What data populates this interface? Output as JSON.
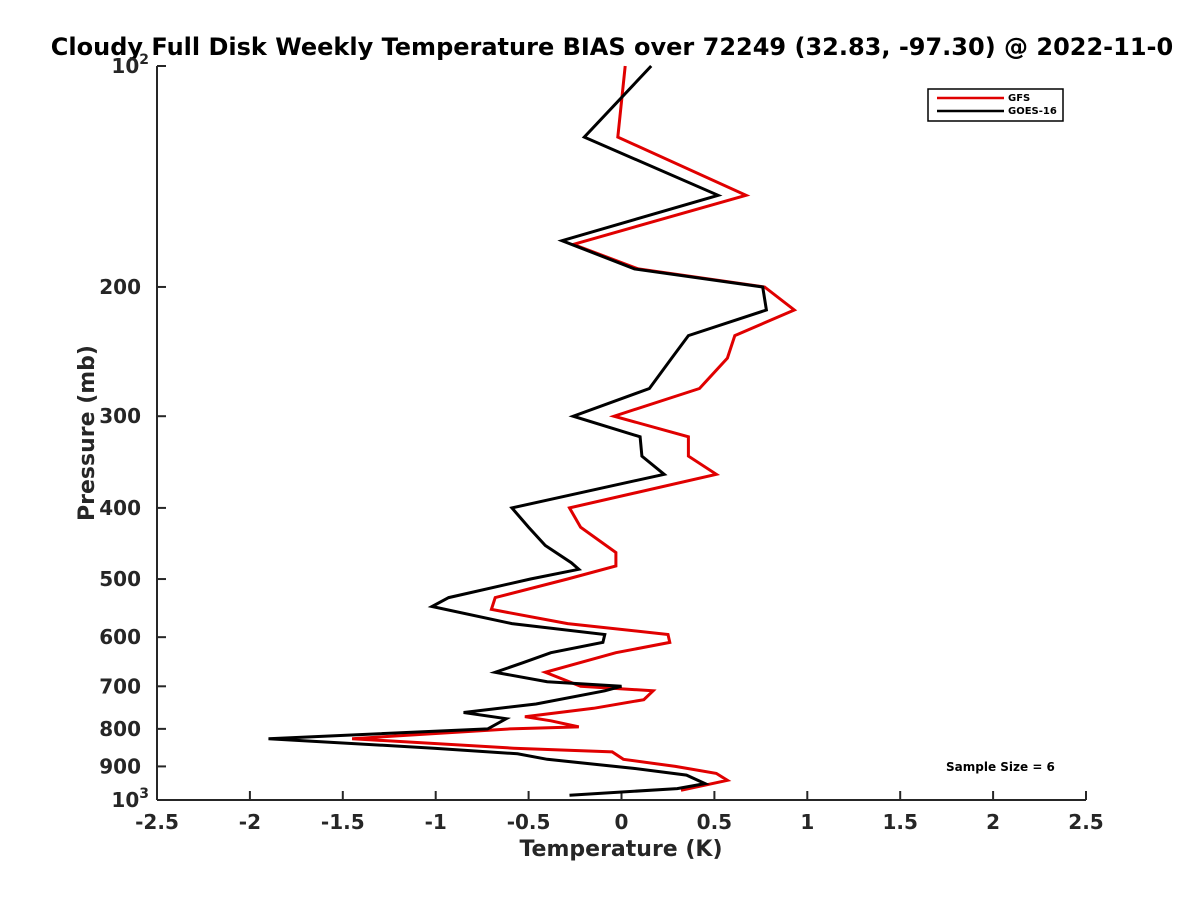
{
  "chart_data": {
    "type": "line",
    "title": "Cloudy Full Disk Weekly Temperature BIAS over 72249 (32.83, -97.30) @ 2022-11-0",
    "xlabel": "Temperature (K)",
    "ylabel": "Pressure (mb)",
    "xlim": [
      -2.5,
      2.5
    ],
    "ylim": [
      100,
      1000
    ],
    "y_scale": "log",
    "y_reversed": true,
    "grid": false,
    "x_ticks": [
      {
        "value": -2.5,
        "label": "-2.5"
      },
      {
        "value": -2,
        "label": "-2"
      },
      {
        "value": -1.5,
        "label": "-1.5"
      },
      {
        "value": -1,
        "label": "-1"
      },
      {
        "value": -0.5,
        "label": "-0.5"
      },
      {
        "value": 0,
        "label": "0"
      },
      {
        "value": 0.5,
        "label": "0.5"
      },
      {
        "value": 1,
        "label": "1"
      },
      {
        "value": 1.5,
        "label": "1.5"
      },
      {
        "value": 2,
        "label": "2"
      },
      {
        "value": 2.5,
        "label": "2.5"
      }
    ],
    "y_ticks": [
      {
        "value": 100,
        "label": "10",
        "exponent": "2"
      },
      {
        "value": 200,
        "label": "200",
        "exponent": ""
      },
      {
        "value": 300,
        "label": "300",
        "exponent": ""
      },
      {
        "value": 400,
        "label": "400",
        "exponent": ""
      },
      {
        "value": 500,
        "label": "500",
        "exponent": ""
      },
      {
        "value": 600,
        "label": "600",
        "exponent": ""
      },
      {
        "value": 700,
        "label": "700",
        "exponent": ""
      },
      {
        "value": 800,
        "label": "800",
        "exponent": ""
      },
      {
        "value": 900,
        "label": "900",
        "exponent": ""
      },
      {
        "value": 1000,
        "label": "10",
        "exponent": "3"
      }
    ],
    "legend_position": "top-right",
    "annotation": "Sample Size = 6",
    "series": [
      {
        "name": "GFS",
        "color": "#e00000",
        "points": [
          {
            "t": 0.02,
            "p": 100
          },
          {
            "t": -0.02,
            "p": 125
          },
          {
            "t": 0.67,
            "p": 150
          },
          {
            "t": -0.26,
            "p": 175
          },
          {
            "t": 0.09,
            "p": 189
          },
          {
            "t": 0.77,
            "p": 200
          },
          {
            "t": 0.93,
            "p": 215
          },
          {
            "t": 0.61,
            "p": 233
          },
          {
            "t": 0.57,
            "p": 250
          },
          {
            "t": 0.42,
            "p": 275
          },
          {
            "t": -0.04,
            "p": 300
          },
          {
            "t": 0.36,
            "p": 320
          },
          {
            "t": 0.36,
            "p": 340
          },
          {
            "t": 0.51,
            "p": 360
          },
          {
            "t": -0.28,
            "p": 400
          },
          {
            "t": -0.22,
            "p": 425
          },
          {
            "t": -0.03,
            "p": 460
          },
          {
            "t": -0.03,
            "p": 480
          },
          {
            "t": -0.29,
            "p": 500
          },
          {
            "t": -0.68,
            "p": 530
          },
          {
            "t": -0.7,
            "p": 550
          },
          {
            "t": -0.29,
            "p": 575
          },
          {
            "t": 0.25,
            "p": 595
          },
          {
            "t": 0.26,
            "p": 610
          },
          {
            "t": -0.03,
            "p": 630
          },
          {
            "t": -0.41,
            "p": 670
          },
          {
            "t": -0.22,
            "p": 700
          },
          {
            "t": 0.17,
            "p": 710
          },
          {
            "t": 0.12,
            "p": 730
          },
          {
            "t": -0.15,
            "p": 750
          },
          {
            "t": -0.52,
            "p": 770
          },
          {
            "t": -0.38,
            "p": 780
          },
          {
            "t": -0.23,
            "p": 795
          },
          {
            "t": -0.6,
            "p": 800
          },
          {
            "t": -1.45,
            "p": 825
          },
          {
            "t": -0.58,
            "p": 850
          },
          {
            "t": -0.05,
            "p": 860
          },
          {
            "t": 0.01,
            "p": 880
          },
          {
            "t": 0.29,
            "p": 900
          },
          {
            "t": 0.51,
            "p": 920
          },
          {
            "t": 0.57,
            "p": 940
          },
          {
            "t": 0.32,
            "p": 970
          }
        ]
      },
      {
        "name": "GOES-16",
        "color": "#000000",
        "points": [
          {
            "t": 0.16,
            "p": 100
          },
          {
            "t": -0.2,
            "p": 125
          },
          {
            "t": 0.52,
            "p": 150
          },
          {
            "t": -0.32,
            "p": 173
          },
          {
            "t": 0.07,
            "p": 189
          },
          {
            "t": 0.76,
            "p": 200
          },
          {
            "t": 0.78,
            "p": 215
          },
          {
            "t": 0.36,
            "p": 233
          },
          {
            "t": 0.27,
            "p": 250
          },
          {
            "t": 0.15,
            "p": 275
          },
          {
            "t": -0.26,
            "p": 300
          },
          {
            "t": 0.1,
            "p": 320
          },
          {
            "t": 0.11,
            "p": 340
          },
          {
            "t": 0.23,
            "p": 360
          },
          {
            "t": -0.59,
            "p": 400
          },
          {
            "t": -0.5,
            "p": 425
          },
          {
            "t": -0.41,
            "p": 450
          },
          {
            "t": -0.27,
            "p": 475
          },
          {
            "t": -0.23,
            "p": 485
          },
          {
            "t": -0.49,
            "p": 500
          },
          {
            "t": -0.93,
            "p": 530
          },
          {
            "t": -1.02,
            "p": 545
          },
          {
            "t": -0.59,
            "p": 575
          },
          {
            "t": -0.09,
            "p": 595
          },
          {
            "t": -0.1,
            "p": 610
          },
          {
            "t": -0.38,
            "p": 630
          },
          {
            "t": -0.53,
            "p": 650
          },
          {
            "t": -0.68,
            "p": 670
          },
          {
            "t": -0.4,
            "p": 690
          },
          {
            "t": 0.0,
            "p": 700
          },
          {
            "t": -0.09,
            "p": 710
          },
          {
            "t": -0.46,
            "p": 740
          },
          {
            "t": -0.85,
            "p": 760
          },
          {
            "t": -0.62,
            "p": 775
          },
          {
            "t": -0.72,
            "p": 800
          },
          {
            "t": -1.9,
            "p": 825
          },
          {
            "t": -1.01,
            "p": 850
          },
          {
            "t": -0.56,
            "p": 865
          },
          {
            "t": -0.4,
            "p": 880
          },
          {
            "t": 0.06,
            "p": 905
          },
          {
            "t": 0.35,
            "p": 925
          },
          {
            "t": 0.45,
            "p": 950
          },
          {
            "t": 0.3,
            "p": 965
          },
          {
            "t": -0.28,
            "p": 985
          }
        ]
      }
    ]
  }
}
